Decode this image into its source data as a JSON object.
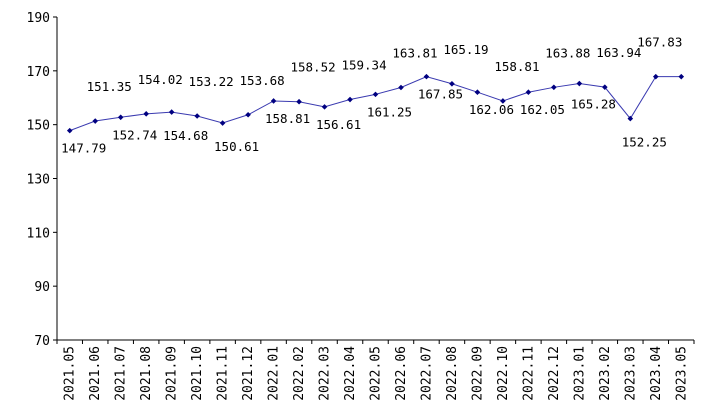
{
  "chart_data": {
    "type": "line",
    "title": "",
    "xlabel": "",
    "ylabel": "",
    "ylim": [
      70,
      190
    ],
    "yticks": [
      70,
      90,
      110,
      130,
      150,
      170,
      190
    ],
    "ytick_labels": [
      "70",
      "90",
      "110",
      "130",
      "150",
      "170",
      "190"
    ],
    "grid": false,
    "categories": [
      "2021.05",
      "2021.06",
      "2021.07",
      "2021.08",
      "2021.09",
      "2021.10",
      "2021.11",
      "2021.12",
      "2022.01",
      "2022.02",
      "2022.03",
      "2022.04",
      "2022.05",
      "2022.06",
      "2022.07",
      "2022.08",
      "2022.09",
      "2022.10",
      "2022.11",
      "2022.12",
      "2023.01",
      "2023.02",
      "2023.03",
      "2023.04",
      "2023.05"
    ],
    "series": [
      {
        "color": "#000080",
        "values": [
          147.79,
          151.35,
          152.74,
          154.02,
          154.68,
          153.22,
          150.61,
          153.68,
          158.81,
          158.52,
          156.61,
          159.34,
          161.25,
          163.81,
          167.85,
          165.19,
          162.06,
          158.81,
          162.05,
          163.88,
          165.28,
          163.94,
          152.25,
          167.83,
          167.83
        ],
        "labels": [
          "147.79",
          "151.35",
          "152.74",
          "154.02",
          "154.68",
          "153.22",
          "150.61",
          "153.68",
          "158.81",
          "158.52",
          "156.61",
          "159.34",
          "161.25",
          "163.81",
          "167.85",
          "165.19",
          "162.06",
          "158.81",
          "162.05",
          "163.88",
          "165.28",
          "163.94",
          "152.25",
          "167.83",
          ""
        ]
      }
    ]
  }
}
